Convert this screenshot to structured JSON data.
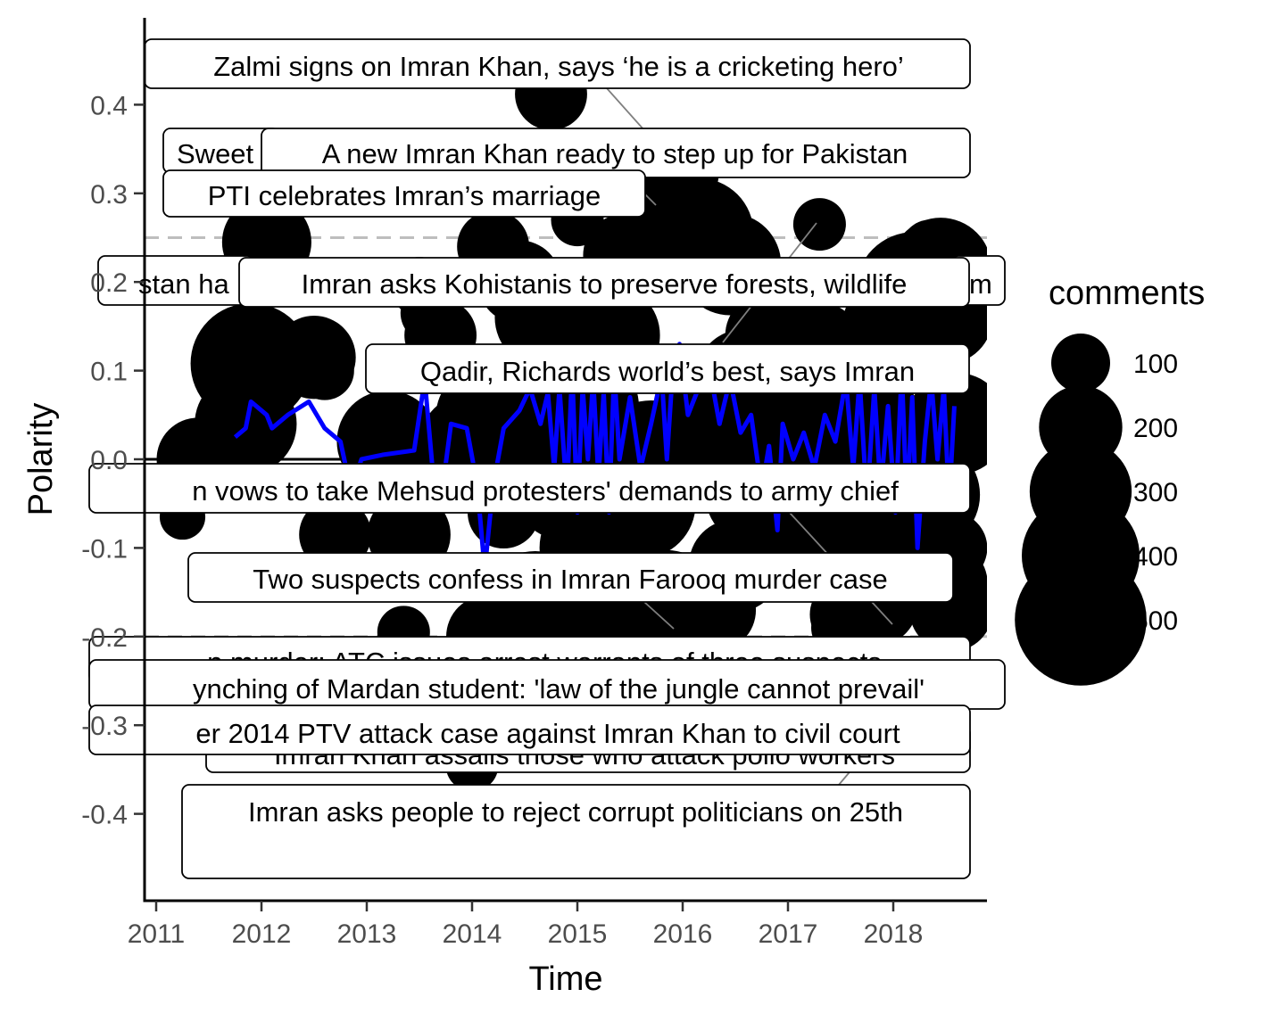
{
  "chart_data": {
    "type": "scatter",
    "xlabel": "Time",
    "ylabel": "Polarity",
    "x_ticks": [
      "2011",
      "2012",
      "2013",
      "2014",
      "2015",
      "2016",
      "2017",
      "2018"
    ],
    "y_ticks": [
      "-0.4",
      "-0.3",
      "-0.2",
      "-0.1",
      "0.0",
      "0.1",
      "0.2",
      "0.3",
      "0.4"
    ],
    "xlim": [
      2010.9,
      2018.9
    ],
    "ylim": [
      -0.5,
      0.5
    ],
    "reference_lines": {
      "solid": [
        0.0
      ],
      "dashed": [
        0.25,
        -0.2
      ]
    },
    "legend": {
      "title": "comments",
      "position": "right",
      "entries": [
        {
          "label": "100",
          "value": 100
        },
        {
          "label": "200",
          "value": 200
        },
        {
          "label": "300",
          "value": 300
        },
        {
          "label": "400",
          "value": 400
        },
        {
          "label": "500",
          "value": 500
        }
      ]
    },
    "points": [
      [
        2011.4,
        0.0,
        200
      ],
      [
        2011.25,
        -0.065,
        60
      ],
      [
        2011.9,
        0.108,
        420
      ],
      [
        2012.05,
        0.245,
        230
      ],
      [
        2011.85,
        0.04,
        300
      ],
      [
        2012.5,
        0.115,
        200
      ],
      [
        2012.6,
        0.1,
        100
      ],
      [
        2012.7,
        -0.085,
        150
      ],
      [
        2013.5,
        0.195,
        100
      ],
      [
        2013.6,
        0.165,
        100
      ],
      [
        2013.7,
        0.14,
        150
      ],
      [
        2013.4,
        -0.085,
        200
      ],
      [
        2013.35,
        -0.195,
        80
      ],
      [
        2013.2,
        0.02,
        300
      ],
      [
        2014.2,
        0.24,
        150
      ],
      [
        2014.15,
        -0.2,
        200
      ],
      [
        2014.1,
        0.05,
        250
      ],
      [
        2014.3,
        -0.06,
        150
      ],
      [
        2014.75,
        0.412,
        150
      ],
      [
        2014.8,
        -0.195,
        300
      ],
      [
        2014.7,
        0.16,
        300
      ],
      [
        2014.6,
        -0.17,
        400
      ],
      [
        2015.0,
        0.27,
        80
      ],
      [
        2015.45,
        0.23,
        200
      ],
      [
        2015.5,
        -0.185,
        250
      ],
      [
        2015.3,
        0.14,
        300
      ],
      [
        2015.2,
        -0.1,
        400
      ],
      [
        2015.75,
        0.285,
        150
      ],
      [
        2015.85,
        -0.16,
        300
      ],
      [
        2015.95,
        0.23,
        150
      ],
      [
        2016.0,
        0.322,
        150
      ],
      [
        2016.15,
        0.255,
        350
      ],
      [
        2016.3,
        -0.17,
        200
      ],
      [
        2016.45,
        0.22,
        300
      ],
      [
        2016.5,
        -0.12,
        250
      ],
      [
        2016.6,
        0.09,
        300
      ],
      [
        2016.8,
        0.14,
        200
      ],
      [
        2017.0,
        0.155,
        250
      ],
      [
        2017.1,
        0.05,
        350
      ],
      [
        2017.3,
        0.265,
        80
      ],
      [
        2017.1,
        -0.085,
        80
      ],
      [
        2017.3,
        0.13,
        200
      ],
      [
        2017.5,
        -0.05,
        400
      ],
      [
        2017.55,
        -0.175,
        150
      ],
      [
        2017.5,
        -0.19,
        100
      ],
      [
        2017.75,
        0.05,
        300
      ],
      [
        2017.8,
        -0.16,
        250
      ],
      [
        2017.8,
        -0.09,
        400
      ],
      [
        2018.0,
        0.15,
        300
      ],
      [
        2018.2,
        0.19,
        400
      ],
      [
        2018.35,
        0.237,
        100
      ],
      [
        2018.45,
        0.215,
        300
      ],
      [
        2018.5,
        0.16,
        250
      ],
      [
        2018.5,
        -0.14,
        200
      ],
      [
        2018.55,
        -0.17,
        200
      ],
      [
        2018.6,
        0.04,
        300
      ],
      [
        2018.55,
        -0.1,
        150
      ],
      [
        2013.95,
        0.02,
        250
      ],
      [
        2014.45,
        0.2,
        200
      ],
      [
        2014.5,
        0.03,
        300
      ],
      [
        2014.9,
        -0.03,
        350
      ],
      [
        2015.1,
        0.06,
        300
      ],
      [
        2015.7,
        0.0,
        400
      ],
      [
        2016.2,
        0.04,
        350
      ],
      [
        2016.7,
        -0.04,
        300
      ],
      [
        2017.2,
        0.01,
        350
      ],
      [
        2017.7,
        0.04,
        300
      ],
      [
        2018.3,
        -0.04,
        350
      ],
      [
        2015.6,
        -0.05,
        350
      ],
      [
        2016.4,
        0.07,
        300
      ],
      [
        2014.0,
        -0.345,
        80
      ],
      [
        2016.6,
        -0.135,
        100
      ],
      [
        2018.25,
        0.01,
        300
      ],
      [
        2013.8,
        0.0,
        200
      ],
      [
        2017.95,
        -0.015,
        300
      ]
    ],
    "trend_line": [
      [
        2011.75,
        0.025
      ],
      [
        2011.85,
        0.035
      ],
      [
        2011.9,
        0.065
      ],
      [
        2012.05,
        0.05
      ],
      [
        2012.1,
        0.035
      ],
      [
        2012.25,
        0.05
      ],
      [
        2012.45,
        0.065
      ],
      [
        2012.6,
        0.035
      ],
      [
        2012.75,
        0.02
      ],
      [
        2012.85,
        -0.035
      ],
      [
        2012.95,
        0.0
      ],
      [
        2013.15,
        0.005
      ],
      [
        2013.45,
        0.01
      ],
      [
        2013.55,
        0.09
      ],
      [
        2013.65,
        -0.045
      ],
      [
        2013.7,
        -0.05
      ],
      [
        2013.8,
        0.04
      ],
      [
        2013.95,
        0.035
      ],
      [
        2014.05,
        -0.03
      ],
      [
        2014.12,
        -0.125
      ],
      [
        2014.2,
        -0.03
      ],
      [
        2014.3,
        0.035
      ],
      [
        2014.45,
        0.055
      ],
      [
        2014.55,
        0.08
      ],
      [
        2014.65,
        0.04
      ],
      [
        2014.72,
        0.075
      ],
      [
        2014.78,
        -0.01
      ],
      [
        2014.83,
        0.08
      ],
      [
        2014.9,
        -0.04
      ],
      [
        2014.95,
        0.1
      ],
      [
        2015.0,
        -0.06
      ],
      [
        2015.05,
        0.08
      ],
      [
        2015.1,
        0.0
      ],
      [
        2015.15,
        0.09
      ],
      [
        2015.2,
        -0.02
      ],
      [
        2015.25,
        0.075
      ],
      [
        2015.3,
        -0.06
      ],
      [
        2015.35,
        0.1
      ],
      [
        2015.4,
        0.0
      ],
      [
        2015.5,
        0.07
      ],
      [
        2015.6,
        -0.01
      ],
      [
        2015.7,
        0.04
      ],
      [
        2015.8,
        0.095
      ],
      [
        2015.85,
        0.0
      ],
      [
        2015.9,
        0.09
      ],
      [
        2015.97,
        0.13
      ],
      [
        2016.05,
        0.05
      ],
      [
        2016.15,
        0.08
      ],
      [
        2016.25,
        0.105
      ],
      [
        2016.35,
        0.04
      ],
      [
        2016.45,
        0.09
      ],
      [
        2016.55,
        0.03
      ],
      [
        2016.65,
        0.05
      ],
      [
        2016.75,
        -0.035
      ],
      [
        2016.82,
        0.015
      ],
      [
        2016.9,
        -0.08
      ],
      [
        2016.95,
        0.04
      ],
      [
        2017.05,
        0.0
      ],
      [
        2017.15,
        0.03
      ],
      [
        2017.25,
        -0.01
      ],
      [
        2017.35,
        0.05
      ],
      [
        2017.45,
        0.02
      ],
      [
        2017.55,
        0.09
      ],
      [
        2017.62,
        -0.01
      ],
      [
        2017.68,
        0.09
      ],
      [
        2017.75,
        -0.05
      ],
      [
        2017.82,
        0.08
      ],
      [
        2017.88,
        -0.035
      ],
      [
        2017.95,
        0.06
      ],
      [
        2018.02,
        -0.06
      ],
      [
        2018.08,
        0.1
      ],
      [
        2018.13,
        -0.055
      ],
      [
        2018.18,
        0.07
      ],
      [
        2018.23,
        -0.1
      ],
      [
        2018.3,
        0.02
      ],
      [
        2018.36,
        0.09
      ],
      [
        2018.42,
        0.0
      ],
      [
        2018.48,
        0.08
      ],
      [
        2018.53,
        -0.05
      ],
      [
        2018.58,
        0.06
      ]
    ],
    "annotations": [
      {
        "label": "Zalmi signs on Imran Khan, says ‘he is a cricketing hero’"
      },
      {
        "label": "Sweet"
      },
      {
        "label": "A new Imran Khan ready to step up for Pakistan"
      },
      {
        "label": "PTI celebrates Imran’s marriage"
      },
      {
        "label": "stan ha"
      },
      {
        "label": "m"
      },
      {
        "label": "Imran asks Kohistanis to preserve forests, wildlife"
      },
      {
        "label": "Qadir, Richards world’s best, says Imran"
      },
      {
        "label": "n vows to take Mehsud protesters' demands to army chief"
      },
      {
        "label": "Two suspects confess in Imran Farooq murder case"
      },
      {
        "label": "n murder: ATC issues arrest warrants of three suspects"
      },
      {
        "label": "ynching of Mardan student: 'law of the jungle cannot prevail'"
      },
      {
        "label": "Imran Khan assails those who attack polio workers"
      },
      {
        "label": "er 2014 PTV attack case against Imran Khan to civil court"
      },
      {
        "label": "Imran asks people to reject corrupt politicians on 25th"
      }
    ]
  }
}
